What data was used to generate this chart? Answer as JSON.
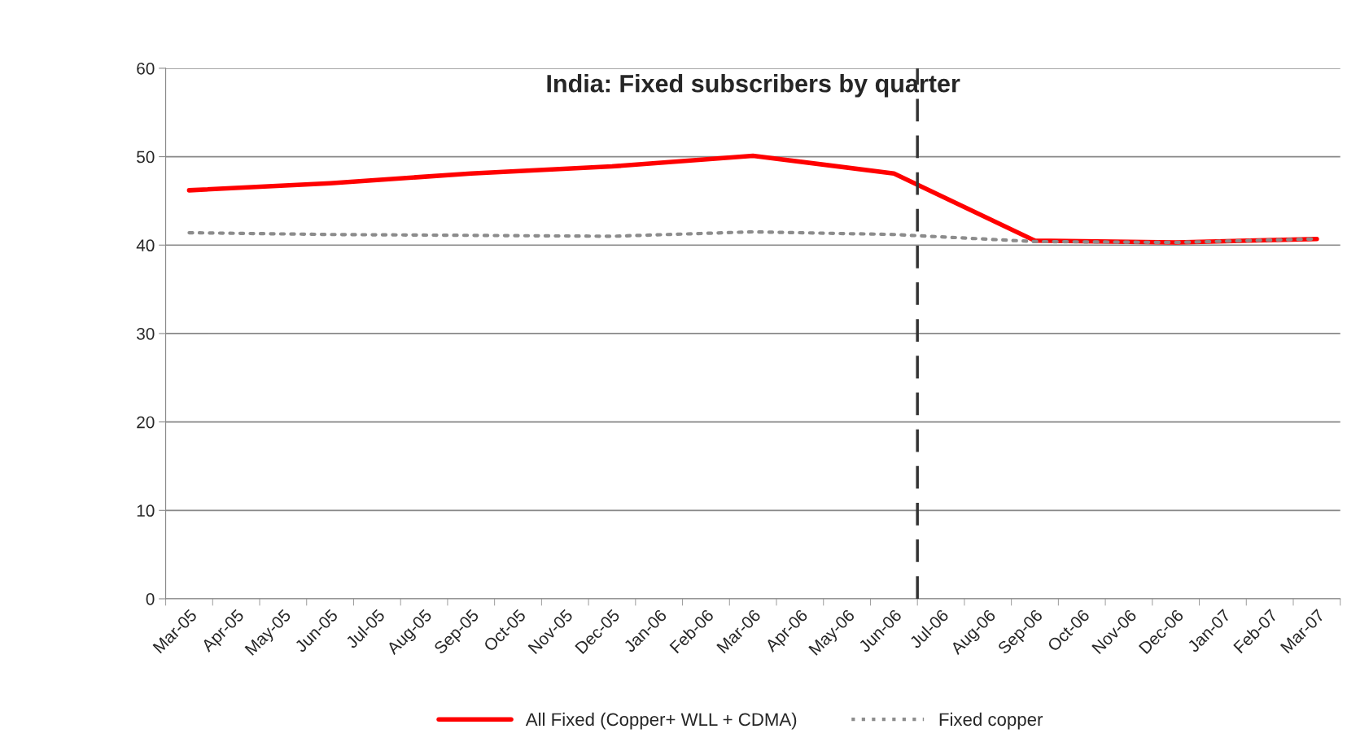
{
  "chart_data": {
    "type": "line",
    "title": "India: Fixed subscribers by quarter",
    "categories": [
      "Mar-05",
      "Apr-05",
      "May-05",
      "Jun-05",
      "Jul-05",
      "Aug-05",
      "Sep-05",
      "Oct-05",
      "Nov-05",
      "Dec-05",
      "Jan-06",
      "Feb-06",
      "Mar-06",
      "Apr-06",
      "May-06",
      "Jun-06",
      "Jul-06",
      "Aug-06",
      "Sep-06",
      "Oct-06",
      "Nov-06",
      "Dec-06",
      "Jan-07",
      "Feb-07",
      "Mar-07"
    ],
    "series": [
      {
        "name": "All Fixed (Copper+ WLL + CDMA)",
        "color": "#ff0000",
        "line_style": "solid",
        "values": [
          46.2,
          null,
          null,
          47.0,
          null,
          null,
          48.1,
          null,
          null,
          48.9,
          null,
          null,
          50.1,
          null,
          null,
          48.1,
          null,
          null,
          40.5,
          null,
          null,
          40.3,
          null,
          null,
          40.7
        ]
      },
      {
        "name": "Fixed copper",
        "color": "#8c8c8c",
        "line_style": "dotted",
        "values": [
          41.4,
          null,
          null,
          41.2,
          null,
          null,
          41.1,
          null,
          null,
          41.0,
          null,
          null,
          41.5,
          null,
          null,
          41.2,
          null,
          null,
          40.4,
          null,
          null,
          40.3,
          null,
          null,
          40.7
        ]
      }
    ],
    "ylim": [
      0,
      60
    ],
    "yticks": [
      0,
      10,
      20,
      30,
      40,
      50,
      60
    ],
    "grid": "y",
    "legend": "bottom",
    "marker": "none",
    "ref_lines": [
      {
        "axis": "x",
        "value": "Jul-06",
        "color": "#333333",
        "line_style": "dashed"
      }
    ]
  }
}
